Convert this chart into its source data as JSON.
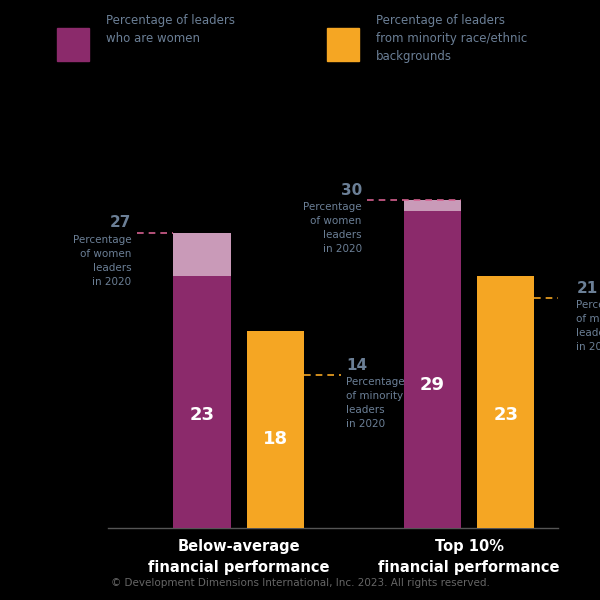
{
  "background_color": "#000000",
  "legend": [
    {
      "label": "Percentage of leaders\nwho are women",
      "color": "#8b2a6b"
    },
    {
      "label": "Percentage of leaders\nfrom minority race/ethnic\nbackgrounds",
      "color": "#f5a623"
    }
  ],
  "groups": [
    {
      "xlabel": "Below-average\nfinancial performance",
      "women_2023": 23,
      "women_2020": 27,
      "minority_2023": 18,
      "minority_2020": 14
    },
    {
      "xlabel": "Top 10%\nfinancial performance",
      "women_2023": 29,
      "women_2020": 30,
      "minority_2023": 23,
      "minority_2020": 21
    }
  ],
  "women_color": "#8b2a6b",
  "women_color_light": "#c99ab8",
  "minority_color": "#f5a623",
  "ylim": [
    0,
    34
  ],
  "footer": "© Development Dimensions International, Inc. 2023. All rights reserved.",
  "annotation_color": "#6b7f96",
  "dashed_color_pink": "#d4608e",
  "dashed_color_orange": "#f5a623"
}
